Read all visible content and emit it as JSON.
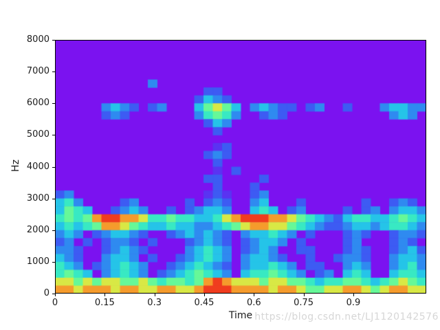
{
  "watermark": {
    "text": "https://blog.csdn.net/LJ1120142576",
    "color": "#d6d6d6"
  },
  "chart_data": {
    "type": "heatmap",
    "subtype": "spectrogram",
    "title": "",
    "xlabel": "Time",
    "ylabel": "Hz",
    "xlim": [
      0,
      1.12
    ],
    "ylim": [
      0,
      8000
    ],
    "x_ticks": [
      0,
      0.15,
      0.3,
      0.45,
      0.6,
      0.75,
      0.9
    ],
    "x_tick_labels": [
      "0",
      "0.15",
      "0.3",
      "0.45",
      "0.6",
      "0.75",
      "0.9"
    ],
    "y_ticks": [
      0,
      1000,
      2000,
      3000,
      4000,
      5000,
      6000,
      7000,
      8000
    ],
    "y_tick_labels": [
      "0",
      "1000",
      "2000",
      "3000",
      "4000",
      "5000",
      "6000",
      "7000",
      "8000"
    ],
    "grid": false,
    "legend": "none",
    "colormap": "rainbow",
    "background_color": "#7b12f0",
    "palette": [
      "#7b12f0",
      "#5a33f2",
      "#3d5bf3",
      "#2f8af0",
      "#25c4e8",
      "#38e9c3",
      "#66f898",
      "#d8e845",
      "#f59b2c",
      "#f03c1e"
    ],
    "value_scale": "digits 0-9, 0 = background (no energy), 9 = strongest energy",
    "freq_per_row_hz": 250,
    "time_per_col_s": 0.028,
    "matrix_rows_top_to_bottom": [
      "0000000000000000000000000000000000000000",
      "0000000000000000000000000000000000000000",
      "0000000000000000000000000000000000000000",
      "0000000000000000000000000000000000000000",
      "0000000000000000000000000000000000000000",
      "0000000000300000000000000000000000000000",
      "0000000000000000220000000000000000000000",
      "0000000000000002432000000000000000000000",
      "0000034320230004676403432202300200034433",
      "0000023200000003565300232000000000003430",
      "0000000000000000243000000000000000000000",
      "0000000000000000020000000000000000000000",
      "0000000000000000000000000000000000000000",
      "0000000000000000012000000000000000000000",
      "0000000000000000232000000000000000000000",
      "0000000000000000020000000000000000000000",
      "0000000000000000010200000000000000000000",
      "0000000000000000220000200000000000000000",
      "0000000000000000020002000000000000000000",
      "2300000000000000121002300000000000000000",
      "4530000230000020232003400020000002002320",
      "4654002343002023443004540230000202303443",
      "5656899887556554457899988765432455445654",
      "4545688765445443345678877654322344345543",
      "3430234432002343432034454302000232002332",
      "2302023320200023432023443020000230002320",
      "3320023432000034543023430022000232002342",
      "4320034430200234543034432002002332003443",
      "5430234543002345432034454302200343003453",
      "5654034543023456543045565430230454004554",
      "7767677667656656898777677665455665456765",
      "8878887887788778999888878876677887678877"
    ]
  }
}
